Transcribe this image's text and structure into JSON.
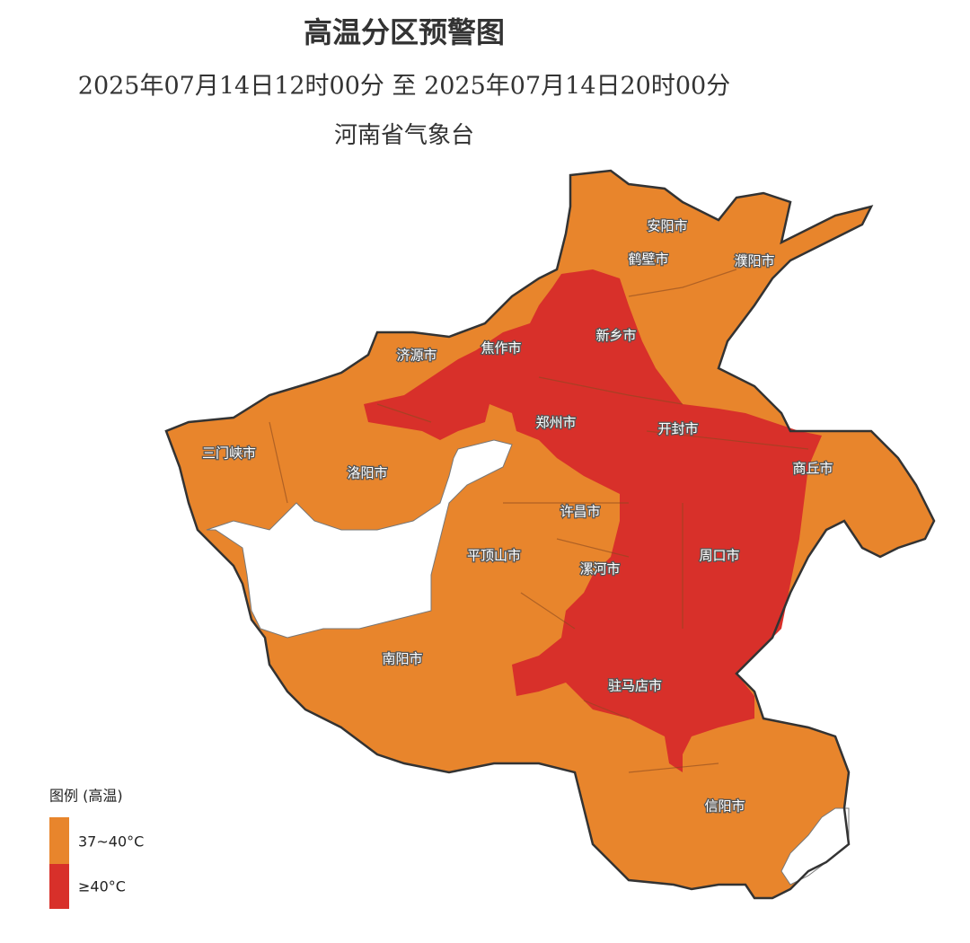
{
  "header": {
    "title": "高温分区预警图",
    "period": "2025年07月14日12时00分 至 2025年07月14日20时00分",
    "issuer": "河南省气象台"
  },
  "map": {
    "cities": [
      "安阳市",
      "鹤壁市",
      "濮阳市",
      "新乡市",
      "焦作市",
      "济源市",
      "郑州市",
      "开封市",
      "商丘市",
      "三门峡市",
      "洛阳市",
      "许昌市",
      "平顶山市",
      "漯河市",
      "周口市",
      "南阳市",
      "驻马店市",
      "信阳市"
    ]
  },
  "legend": {
    "title": "图例 (高温)",
    "items": [
      {
        "label": "37~40°C",
        "color": "#e8852c"
      },
      {
        "label": "≥40°C",
        "color": "#d8302a"
      }
    ]
  }
}
